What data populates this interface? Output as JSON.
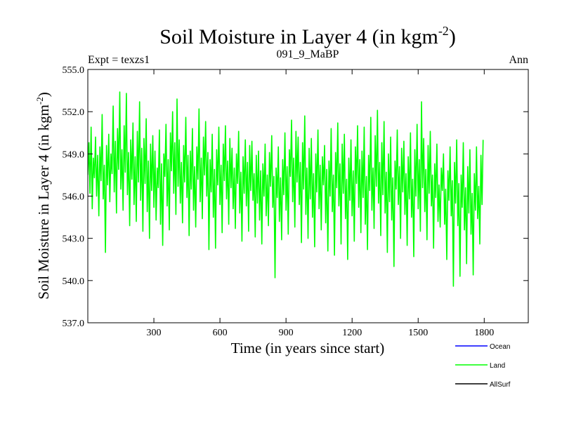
{
  "chart_data": {
    "type": "line",
    "title": "Soil Moisture in Layer 4 (in kgm",
    "title_sup": "-2",
    "title_close": ")",
    "subtitle_left": "Expt = texzs1",
    "subtitle_center": "091_9_MaBP",
    "subtitle_right": "Ann",
    "xlabel": "Time (in years since start)",
    "ylabel": "Soil Moisture in Layer 4 (in kgm",
    "ylabel_sup": "-2",
    "ylabel_close": ")",
    "xlim": [
      0,
      2000
    ],
    "ylim": [
      537.0,
      555.0
    ],
    "x_ticks": [
      300,
      600,
      900,
      1200,
      1500,
      1800
    ],
    "x_tick_labels": [
      "300",
      "600",
      "900",
      "1200",
      "1500",
      "1800"
    ],
    "y_ticks": [
      537.0,
      540.0,
      543.0,
      546.0,
      549.0,
      552.0,
      555.0
    ],
    "y_tick_labels": [
      "537.0",
      "540.0",
      "543.0",
      "546.0",
      "549.0",
      "552.0",
      "555.0"
    ],
    "series": [
      {
        "name": "Land",
        "color": "#00ff00",
        "sampled_every_years": 5,
        "values": [
          547.5,
          549.8,
          546.2,
          550.9,
          545.1,
          548.7,
          547.3,
          550.2,
          546.0,
          548.9,
          544.6,
          549.5,
          547.1,
          551.8,
          545.8,
          548.2,
          542.0,
          549.6,
          546.8,
          550.4,
          545.6,
          549.0,
          547.6,
          552.4,
          546.3,
          549.9,
          544.8,
          550.8,
          547.9,
          553.4,
          546.5,
          549.3,
          545.0,
          551.0,
          547.7,
          553.3,
          546.1,
          549.1,
          543.9,
          550.0,
          547.2,
          551.2,
          545.4,
          548.8,
          544.2,
          550.6,
          547.0,
          552.7,
          545.7,
          549.4,
          543.5,
          550.1,
          546.9,
          551.5,
          544.9,
          548.5,
          543.0,
          549.7,
          546.4,
          550.3,
          545.2,
          549.2,
          544.3,
          548.0,
          546.6,
          550.7,
          544.0,
          548.3,
          542.5,
          549.0,
          547.4,
          551.1,
          545.3,
          548.6,
          543.6,
          550.5,
          547.8,
          552.0,
          546.2,
          549.8,
          544.7,
          552.9,
          546.7,
          550.0,
          545.5,
          548.4,
          544.1,
          549.6,
          547.0,
          551.6,
          545.9,
          548.9,
          543.2,
          549.2,
          546.5,
          550.8,
          545.0,
          548.1,
          543.8,
          549.5,
          547.2,
          552.2,
          545.6,
          548.7,
          544.4,
          550.2,
          547.5,
          551.3,
          546.0,
          549.1,
          542.2,
          548.6,
          546.3,
          550.4,
          544.5,
          547.9,
          542.3,
          549.3,
          546.8,
          550.9,
          545.4,
          548.2,
          543.4,
          549.7,
          547.1,
          551.0,
          545.8,
          548.5,
          544.0,
          550.1,
          546.6,
          549.4,
          545.1,
          548.0,
          543.7,
          549.0,
          546.9,
          550.6,
          544.8,
          547.7,
          542.8,
          548.8,
          546.2,
          550.0,
          545.3,
          548.4,
          543.5,
          549.6,
          546.4,
          549.9,
          545.7,
          547.6,
          543.1,
          548.9,
          545.5,
          549.2,
          544.3,
          547.8,
          542.6,
          548.3,
          546.0,
          549.7,
          544.6,
          547.5,
          543.9,
          549.1,
          546.7,
          550.3,
          545.2,
          547.4,
          540.2,
          548.0,
          545.9,
          549.5,
          544.2,
          547.3,
          542.9,
          548.6,
          546.1,
          550.5,
          545.0,
          548.1,
          543.3,
          549.3,
          547.4,
          551.4,
          545.6,
          548.7,
          543.8,
          550.6,
          547.0,
          550.2,
          545.4,
          548.4,
          542.7,
          549.8,
          546.5,
          551.7,
          544.7,
          548.0,
          543.0,
          549.4,
          545.8,
          550.1,
          544.5,
          547.6,
          542.4,
          549.0,
          546.3,
          550.7,
          545.1,
          548.2,
          543.6,
          548.8,
          546.8,
          549.6,
          544.1,
          547.9,
          542.1,
          548.5,
          546.0,
          550.8,
          544.9,
          547.5,
          541.8,
          549.1,
          546.6,
          551.2,
          545.3,
          548.3,
          542.6,
          549.7,
          546.2,
          550.4,
          544.4,
          547.2,
          541.5,
          548.7,
          545.7,
          550.0,
          544.6,
          547.8,
          542.8,
          549.5,
          546.9,
          551.0,
          545.2,
          548.6,
          543.4,
          549.2,
          545.9,
          550.9,
          544.0,
          547.4,
          542.2,
          548.9,
          546.4,
          551.6,
          545.0,
          548.0,
          543.7,
          550.3,
          546.7,
          552.1,
          545.5,
          548.4,
          543.2,
          549.8,
          546.1,
          551.3,
          544.8,
          547.7,
          542.0,
          549.0,
          545.6,
          550.2,
          544.3,
          547.3,
          541.0,
          548.5,
          546.5,
          550.7,
          545.4,
          548.1,
          543.0,
          549.4,
          546.3,
          549.9,
          544.7,
          547.6,
          542.5,
          548.8,
          545.8,
          550.5,
          544.5,
          547.2,
          541.7,
          549.3,
          546.0,
          551.1,
          545.1,
          548.6,
          543.5,
          552.7,
          546.6,
          550.1,
          544.9,
          547.9,
          542.9,
          549.6,
          546.2,
          550.6,
          545.3,
          547.5,
          542.3,
          548.3,
          545.9,
          549.7,
          544.2,
          546.8,
          543.8,
          548.0,
          546.4,
          549.0,
          544.0,
          546.5,
          541.5,
          547.8,
          545.7,
          549.5,
          544.6,
          547.1,
          539.6,
          548.4,
          545.5,
          550.0,
          543.9,
          546.9,
          540.3,
          547.5,
          545.2,
          549.8,
          543.6,
          546.6,
          541.2,
          548.1,
          544.8,
          549.3,
          543.3,
          546.2,
          540.4,
          547.6,
          545.0,
          549.5,
          544.4,
          546.7,
          542.6,
          548.9,
          545.4,
          550.0
        ]
      }
    ],
    "legend": [
      {
        "label": "Ocean",
        "color": "#0000ff"
      },
      {
        "label": "Land",
        "color": "#00ff00"
      },
      {
        "label": "AllSurf",
        "color": "#000000"
      }
    ],
    "legend_position": "bottom-right",
    "grid": false
  }
}
